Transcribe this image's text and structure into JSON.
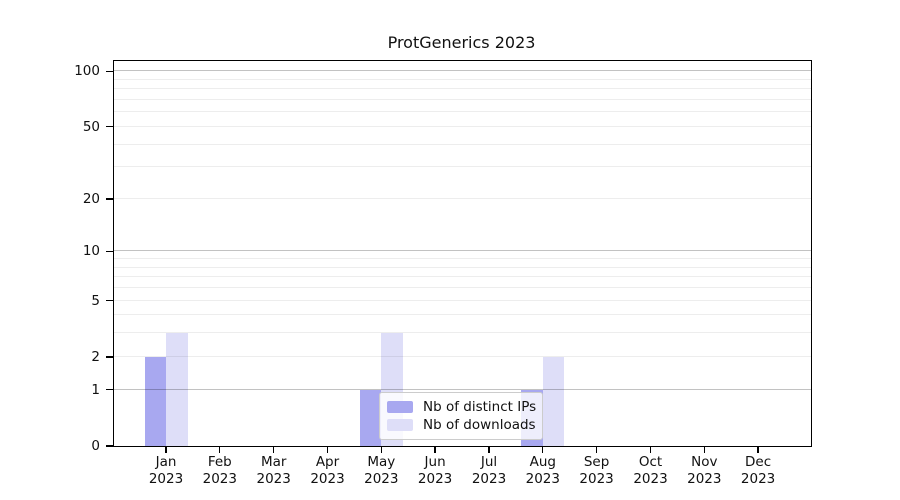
{
  "chart_data": {
    "type": "bar",
    "title": "ProtGenerics 2023",
    "categories": [
      "Jan 2023",
      "Feb 2023",
      "Mar 2023",
      "Apr 2023",
      "May 2023",
      "Jun 2023",
      "Jul 2023",
      "Aug 2023",
      "Sep 2023",
      "Oct 2023",
      "Nov 2023",
      "Dec 2023"
    ],
    "series": [
      {
        "name": "Nb of distinct IPs",
        "color": "#a8a8f0",
        "values": [
          2,
          0,
          0,
          0,
          1,
          0,
          0,
          1,
          0,
          0,
          0,
          0
        ]
      },
      {
        "name": "Nb of downloads",
        "color": "#dedef8",
        "values": [
          3,
          0,
          0,
          0,
          3,
          0,
          0,
          2,
          0,
          0,
          0,
          0
        ]
      }
    ],
    "xlabel": "",
    "ylabel": "",
    "yscale": "log1p",
    "ylim": [
      0,
      113
    ],
    "yticks": [
      0,
      1,
      2,
      5,
      10,
      20,
      50,
      100
    ],
    "major_gridlines": [
      1,
      10,
      100
    ],
    "minor_gridlines": [
      2,
      3,
      4,
      5,
      6,
      7,
      8,
      9,
      20,
      30,
      40,
      50,
      60,
      70,
      80,
      90
    ],
    "grid": true,
    "legend_position": "inside-bottom-center"
  }
}
